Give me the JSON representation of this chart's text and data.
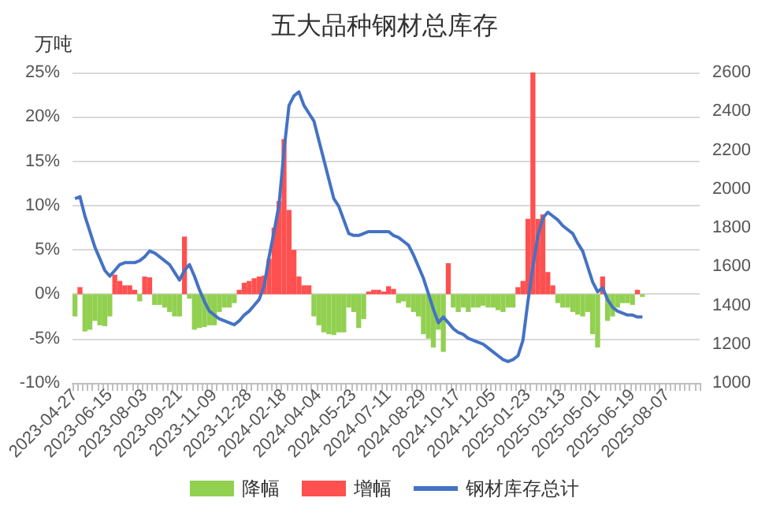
{
  "chart_data": {
    "type": "bar",
    "title": "五大品种钢材总库存",
    "ylabel": "万吨",
    "categories": [
      "2023-04-27",
      null,
      null,
      null,
      null,
      null,
      null,
      "2023-06-15",
      null,
      null,
      null,
      null,
      null,
      null,
      "2023-08-03",
      null,
      null,
      null,
      null,
      null,
      null,
      "2023-09-21",
      null,
      null,
      null,
      null,
      null,
      null,
      "2023-11-09",
      null,
      null,
      null,
      null,
      null,
      null,
      "2023-12-28",
      null,
      null,
      null,
      null,
      null,
      null,
      "2024-02-18",
      null,
      null,
      null,
      null,
      null,
      null,
      "2024-04-04",
      null,
      null,
      null,
      null,
      null,
      null,
      "2024-05-23",
      null,
      null,
      null,
      null,
      null,
      null,
      "2024-07-11",
      null,
      null,
      null,
      null,
      null,
      null,
      "2024-08-29",
      null,
      null,
      null,
      null,
      null,
      null,
      "2024-10-17",
      null,
      null,
      null,
      null,
      null,
      null,
      "2024-12-05",
      null,
      null,
      null,
      null,
      null,
      null,
      "2025-01-23",
      null,
      null,
      null,
      null,
      null,
      null,
      "2025-03-13",
      null,
      null,
      null,
      null,
      null,
      null,
      "2025-05-01",
      null,
      null,
      null,
      null,
      null,
      null,
      "2025-06-19",
      null,
      null,
      null,
      null,
      null,
      null,
      "2025-08-07",
      null,
      null,
      null,
      null,
      null,
      null
    ],
    "series": [
      {
        "name": "降幅",
        "color": "#92d050",
        "values": [
          -2.5,
          null,
          -4.2,
          -4.0,
          -3.0,
          -3.5,
          -3.6,
          -2.5,
          null,
          null,
          null,
          null,
          null,
          -0.8,
          null,
          null,
          -1.2,
          -1.2,
          -1.5,
          -2.0,
          -2.5,
          -2.5,
          null,
          -0.5,
          -4.0,
          -3.8,
          -3.7,
          -3.5,
          -3.5,
          -2.0,
          -1.5,
          -1.5,
          -1.0,
          null,
          null,
          null,
          null,
          null,
          null,
          null,
          null,
          null,
          null,
          null,
          null,
          null,
          null,
          null,
          -2.5,
          -3.5,
          -4.3,
          -4.5,
          -4.6,
          -4.3,
          -4.3,
          -1.5,
          -2.0,
          -3.8,
          -2.8,
          null,
          null,
          null,
          null,
          null,
          null,
          -1.0,
          -0.8,
          -1.5,
          -2.0,
          -2.5,
          -4.5,
          -5.0,
          -6.0,
          -4.0,
          -6.5,
          null,
          -1.5,
          -2.0,
          -1.5,
          -2.0,
          -1.5,
          -1.5,
          -1.3,
          -1.5,
          -1.5,
          -1.8,
          -2.0,
          -1.5,
          -1.5,
          null,
          null,
          null,
          null,
          null,
          null,
          null,
          null,
          -1.0,
          -1.5,
          -1.5,
          -2.0,
          -2.3,
          -2.5,
          -2.0,
          -4.5,
          -6.0,
          null,
          -3.0,
          -2.5,
          -1.5,
          -1.0,
          -1.0,
          -1.2,
          null,
          -0.3,
          null,
          null,
          null,
          null,
          null,
          null,
          null,
          null,
          null,
          null,
          null
        ]
      },
      {
        "name": "增幅",
        "color": "#ff5050",
        "values": [
          null,
          0.8,
          null,
          null,
          null,
          null,
          null,
          null,
          2.2,
          1.5,
          1.0,
          1.0,
          0.5,
          null,
          2.0,
          1.9,
          null,
          null,
          null,
          null,
          null,
          null,
          6.5,
          null,
          null,
          null,
          null,
          null,
          null,
          null,
          null,
          null,
          null,
          0.5,
          1.3,
          1.5,
          1.8,
          2.0,
          2.1,
          4.0,
          7.5,
          10.5,
          17.5,
          9.5,
          5.0,
          2.0,
          1.0,
          1.0,
          null,
          null,
          null,
          null,
          null,
          null,
          null,
          null,
          null,
          null,
          null,
          0.3,
          0.5,
          0.5,
          0.3,
          0.9,
          0.6,
          null,
          null,
          null,
          null,
          null,
          null,
          null,
          null,
          null,
          null,
          3.5,
          null,
          null,
          null,
          null,
          null,
          null,
          null,
          null,
          null,
          null,
          null,
          null,
          null,
          0.8,
          1.5,
          8.5,
          25,
          8.5,
          9.0,
          2.5,
          1.0,
          null,
          null,
          null,
          null,
          null,
          null,
          null,
          null,
          null,
          2.0,
          null,
          null,
          null,
          null,
          null,
          null,
          0.5,
          null,
          null,
          null,
          null,
          null,
          null,
          null,
          null,
          null,
          null,
          null,
          null
        ]
      },
      {
        "name": "钢材库存总计",
        "type": "line",
        "axis": "y2",
        "color": "#4472c4",
        "values": [
          1950,
          1960,
          1860,
          1780,
          1700,
          1640,
          1580,
          1550,
          1580,
          1610,
          1620,
          1620,
          1620,
          1630,
          1650,
          1680,
          1670,
          1650,
          1630,
          1610,
          1570,
          1530,
          1580,
          1610,
          1550,
          1480,
          1420,
          1370,
          1350,
          1330,
          1320,
          1310,
          1300,
          1320,
          1350,
          1370,
          1400,
          1430,
          1500,
          1650,
          1780,
          1920,
          2200,
          2430,
          2480,
          2500,
          2430,
          2390,
          2350,
          2250,
          2150,
          2050,
          1950,
          1910,
          1840,
          1770,
          1760,
          1760,
          1770,
          1780,
          1780,
          1780,
          1780,
          1780,
          1760,
          1750,
          1730,
          1710,
          1660,
          1600,
          1540,
          1460,
          1380,
          1310,
          1340,
          1310,
          1280,
          1260,
          1250,
          1230,
          1220,
          1210,
          1200,
          1180,
          1160,
          1140,
          1120,
          1110,
          1120,
          1140,
          1220,
          1420,
          1600,
          1760,
          1850,
          1880,
          1860,
          1840,
          1810,
          1790,
          1770,
          1720,
          1680,
          1600,
          1520,
          1470,
          1490,
          1430,
          1390,
          1370,
          1360,
          1350,
          1350,
          1340,
          1340,
          null,
          null,
          null,
          null,
          null,
          null,
          null,
          null,
          null,
          null,
          null
        ]
      }
    ],
    "ylim": [
      -10,
      25
    ],
    "yticks": [
      {
        "value": -10,
        "label": "-10%"
      },
      {
        "value": -5,
        "label": "-5%"
      },
      {
        "value": 0,
        "label": "0%"
      },
      {
        "value": 5,
        "label": "5%"
      },
      {
        "value": 10,
        "label": "10%"
      },
      {
        "value": 15,
        "label": "15%"
      },
      {
        "value": 20,
        "label": "20%"
      },
      {
        "value": 25,
        "label": "25%"
      }
    ],
    "y2lim": [
      1000,
      2600
    ],
    "y2ticks": [
      1000,
      1200,
      1400,
      1600,
      1800,
      2000,
      2200,
      2400,
      2600
    ],
    "grid": "y",
    "legend": "bottom",
    "marker": "none",
    "line_style": "solid"
  }
}
